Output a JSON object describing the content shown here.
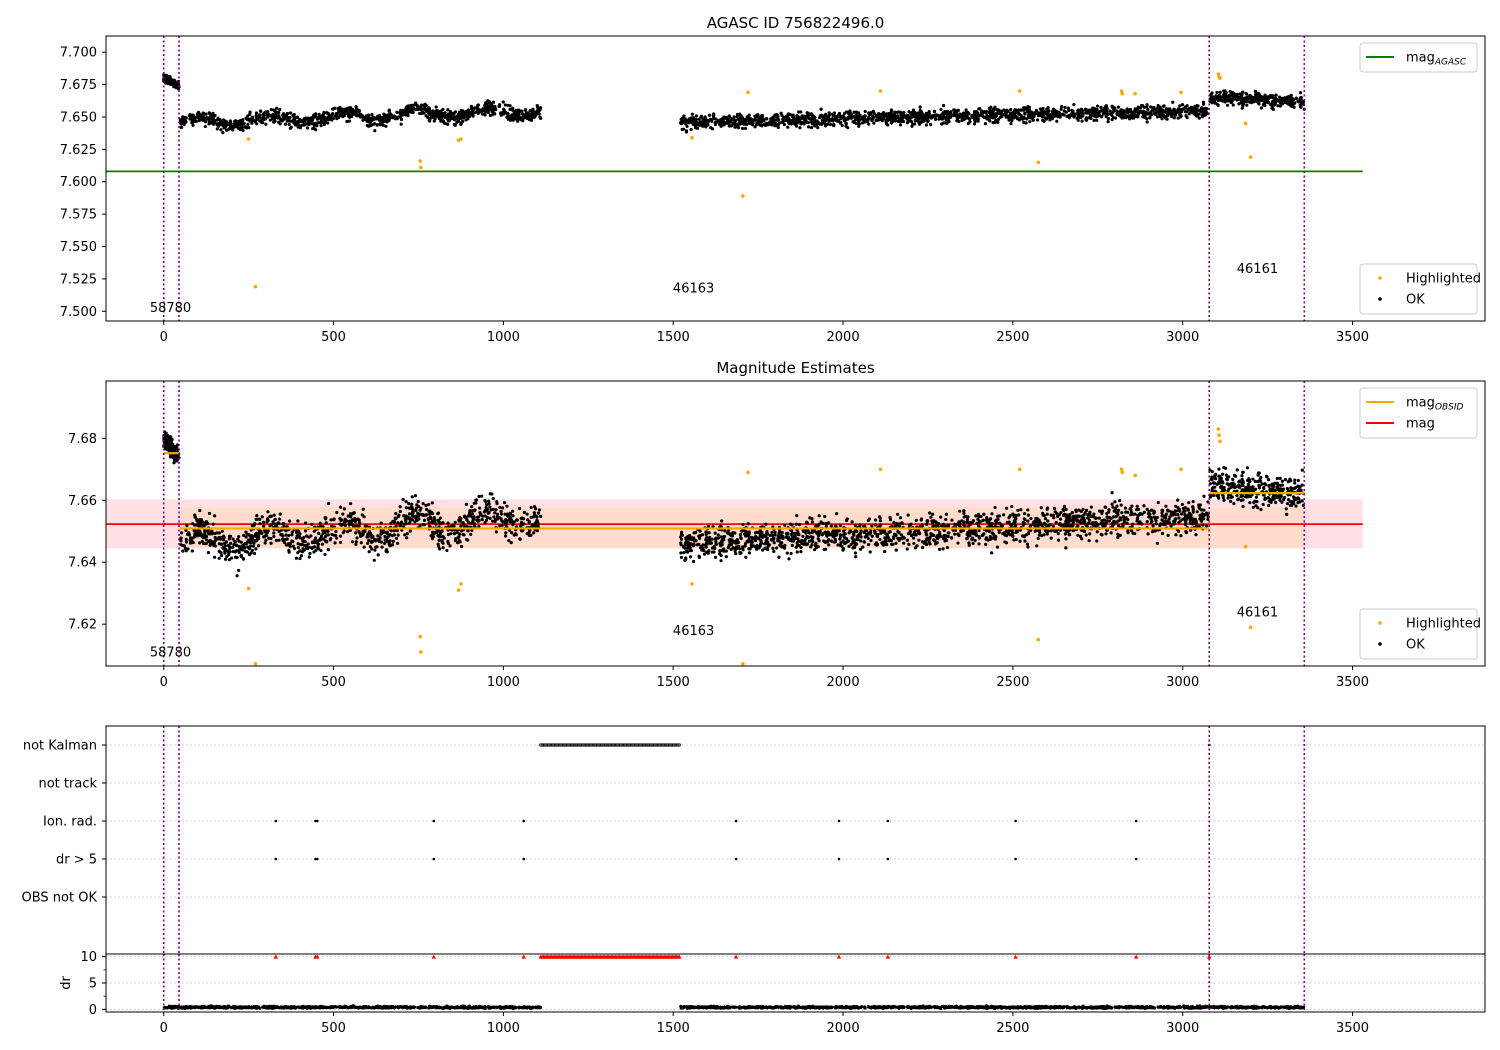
{
  "colors": {
    "ok": "#000000",
    "highlighted": "#ffa500",
    "agasc_line": "#008000",
    "mag_line": "#ff0000",
    "obsid_line": "#ffa500",
    "obs_boundary": "#800080",
    "band_outer": "#ffc8d0",
    "band_inner": "#ffd8b8",
    "flag_marker": "#ff0000"
  },
  "chart_data": [
    {
      "id": "top",
      "type": "scatter",
      "title": "AGASC ID 756822496.0",
      "xlabel": "",
      "ylabel": "",
      "xlim": [
        -170,
        3890
      ],
      "ylim": [
        7.4925,
        7.7125
      ],
      "xticks": [
        0,
        500,
        1000,
        1500,
        2000,
        2500,
        3000,
        3500
      ],
      "yticks": [
        7.5,
        7.525,
        7.55,
        7.575,
        7.6,
        7.625,
        7.65,
        7.675,
        7.7
      ],
      "ytick_labels": [
        "7.500",
        "7.525",
        "7.550",
        "7.575",
        "7.600",
        "7.625",
        "7.650",
        "7.675",
        "7.700"
      ],
      "grid": false,
      "legends": [
        {
          "placement": "top-right",
          "entries": [
            {
              "kind": "line",
              "color_key": "agasc_line",
              "label": "mag",
              "subscript": "AGASC"
            }
          ]
        },
        {
          "placement": "bottom-right",
          "entries": [
            {
              "kind": "dot",
              "color_key": "highlighted",
              "label": "Highlighted",
              "subscript": ""
            },
            {
              "kind": "dot",
              "color_key": "ok",
              "label": "OK",
              "subscript": ""
            }
          ]
        }
      ],
      "hlines": [
        {
          "y": 7.608,
          "x_range": [
            -170,
            3530
          ],
          "color_key": "agasc_line"
        }
      ],
      "segments": [],
      "bands": [],
      "observation_boundaries": [
        0,
        45,
        3078,
        3358
      ],
      "observation_labels": [
        {
          "text": "58780",
          "x": 20,
          "y": 7.4995
        },
        {
          "text": "46163",
          "x": 1560,
          "y": 7.5145
        },
        {
          "text": "46161",
          "x": 3220,
          "y": 7.5295
        }
      ],
      "ok_segments": [
        {
          "x": [
            0,
            45
          ],
          "start": 7.68,
          "end": 7.674,
          "noise": 0.0025,
          "count": 150
        },
        {
          "x": [
            48,
            1110
          ],
          "start": 7.646,
          "end": 7.655,
          "noise": 0.0045,
          "count": 1050,
          "wave": 0.0035
        },
        {
          "x": [
            1522,
            3075
          ],
          "start": 7.646,
          "end": 7.655,
          "noise": 0.0045,
          "count": 1550
        },
        {
          "x": [
            3080,
            3358
          ],
          "start": 7.665,
          "end": 7.662,
          "noise": 0.0045,
          "count": 330
        }
      ],
      "highlighted_points": [
        [
          250,
          7.633
        ],
        [
          270,
          7.519
        ],
        [
          755,
          7.616
        ],
        [
          757,
          7.611
        ],
        [
          868,
          7.632
        ],
        [
          875,
          7.633
        ],
        [
          1555,
          7.634
        ],
        [
          1705,
          7.589
        ],
        [
          1720,
          7.669
        ],
        [
          2110,
          7.67
        ],
        [
          2520,
          7.67
        ],
        [
          2575,
          7.615
        ],
        [
          2820,
          7.67
        ],
        [
          2822,
          7.668
        ],
        [
          2860,
          7.668
        ],
        [
          2995,
          7.669
        ],
        [
          3105,
          7.683
        ],
        [
          3107,
          7.681
        ],
        [
          3110,
          7.68
        ],
        [
          3185,
          7.645
        ],
        [
          3200,
          7.619
        ]
      ],
      "flag_rows": [],
      "dr_ticks": []
    },
    {
      "id": "middle",
      "type": "scatter",
      "title": "Magnitude Estimates",
      "xlabel": "",
      "ylabel": "",
      "xlim": [
        -170,
        3890
      ],
      "ylim": [
        7.6065,
        7.6985
      ],
      "xticks": [
        0,
        500,
        1000,
        1500,
        2000,
        2500,
        3000,
        3500
      ],
      "yticks": [
        7.62,
        7.64,
        7.66,
        7.68
      ],
      "ytick_labels": [
        "7.62",
        "7.64",
        "7.66",
        "7.68"
      ],
      "grid": false,
      "legends": [
        {
          "placement": "top-right",
          "entries": [
            {
              "kind": "line",
              "color_key": "obsid_line",
              "label": "mag",
              "subscript": "OBSID"
            },
            {
              "kind": "line",
              "color_key": "mag_line",
              "label": "mag",
              "subscript": ""
            }
          ]
        },
        {
          "placement": "bottom-right",
          "entries": [
            {
              "kind": "dot",
              "color_key": "highlighted",
              "label": "Highlighted",
              "subscript": ""
            },
            {
              "kind": "dot",
              "color_key": "ok",
              "label": "OK",
              "subscript": ""
            }
          ]
        }
      ],
      "hlines": [
        {
          "y": 7.6523,
          "x_range": [
            -170,
            3530
          ],
          "color_key": "mag_line"
        }
      ],
      "segments": [
        {
          "x": [
            0,
            45
          ],
          "y": 7.6752,
          "color_key": "obsid_line"
        },
        {
          "x": [
            48,
            3078
          ],
          "y": 7.6509,
          "color_key": "obsid_line"
        },
        {
          "x": [
            3080,
            3358
          ],
          "y": 7.6623,
          "color_key": "obsid_line"
        }
      ],
      "bands": [
        {
          "x_range": [
            -170,
            3530
          ],
          "y_range": [
            7.6445,
            7.6603
          ],
          "color_key": "band_outer"
        },
        {
          "x_range": [
            48,
            3358
          ],
          "y_range": [
            7.6445,
            7.6577
          ],
          "color_key": "band_inner"
        }
      ],
      "observation_boundaries": [
        0,
        45,
        3078,
        3358
      ],
      "observation_labels": [
        {
          "text": "58780",
          "x": 20,
          "y": 7.6095
        },
        {
          "text": "46163",
          "x": 1560,
          "y": 7.6165
        },
        {
          "text": "46161",
          "x": 3220,
          "y": 7.6225
        }
      ],
      "ok_segments": [
        {
          "x": [
            0,
            45
          ],
          "start": 7.68,
          "end": 7.674,
          "noise": 0.0025,
          "count": 150
        },
        {
          "x": [
            48,
            1110
          ],
          "start": 7.646,
          "end": 7.655,
          "noise": 0.0045,
          "count": 1050,
          "wave": 0.0035
        },
        {
          "x": [
            1522,
            3075
          ],
          "start": 7.646,
          "end": 7.655,
          "noise": 0.0045,
          "count": 1550
        },
        {
          "x": [
            3080,
            3358
          ],
          "start": 7.665,
          "end": 7.662,
          "noise": 0.0045,
          "count": 330
        }
      ],
      "highlighted_points": [
        [
          250,
          7.6315
        ],
        [
          270,
          7.6072
        ],
        [
          755,
          7.616
        ],
        [
          757,
          7.611
        ],
        [
          868,
          7.631
        ],
        [
          875,
          7.633
        ],
        [
          1555,
          7.633
        ],
        [
          1705,
          7.6072
        ],
        [
          1720,
          7.669
        ],
        [
          2110,
          7.67
        ],
        [
          2520,
          7.67
        ],
        [
          2575,
          7.615
        ],
        [
          2820,
          7.67
        ],
        [
          2822,
          7.669
        ],
        [
          2860,
          7.668
        ],
        [
          2995,
          7.67
        ],
        [
          3105,
          7.683
        ],
        [
          3107,
          7.681
        ],
        [
          3110,
          7.679
        ],
        [
          3185,
          7.645
        ],
        [
          3200,
          7.619
        ]
      ],
      "flag_rows": [],
      "dr_ticks": []
    },
    {
      "id": "flags",
      "type": "scatter",
      "title": "",
      "xlabel": "",
      "ylabel": "",
      "xlim": [
        -170,
        3890
      ],
      "ylim": [
        -0.5,
        5.5
      ],
      "xticks": [],
      "yticks": [
        1,
        2,
        3,
        4,
        5
      ],
      "ytick_labels": [
        "OBS not OK",
        "dr > 5",
        "Ion. rad.",
        "not track",
        "not Kalman"
      ],
      "grid": true,
      "legends": [],
      "hlines": [],
      "segments": [],
      "bands": [],
      "observation_boundaries": [
        0,
        45,
        3078,
        3358
      ],
      "observation_labels": [],
      "ok_segments": [],
      "highlighted_points": [],
      "flag_rows": [
        {
          "label": "not Kalman",
          "y": 5,
          "spans": [
            [
              1110,
              1520
            ]
          ],
          "points": [
            3078
          ]
        },
        {
          "label": "not track",
          "y": 4,
          "spans": [],
          "points": []
        },
        {
          "label": "Ion. rad.",
          "y": 3,
          "spans": [],
          "points": [
            330,
            447,
            452,
            795,
            1060,
            1685,
            1988,
            2132,
            2508,
            2863
          ]
        },
        {
          "label": "dr > 5",
          "y": 2,
          "spans": [],
          "points": [
            330,
            447,
            452,
            795,
            1060,
            1685,
            1988,
            2132,
            2508,
            2863
          ]
        },
        {
          "label": "OBS not OK",
          "y": 1,
          "spans": [],
          "points": []
        }
      ],
      "dr_ticks": []
    },
    {
      "id": "dr",
      "type": "scatter",
      "title": "",
      "xlabel": "",
      "ylabel": "dr",
      "xlim": [
        -170,
        3890
      ],
      "ylim": [
        -0.5,
        10.5
      ],
      "xticks": [
        0,
        500,
        1000,
        1500,
        2000,
        2500,
        3000,
        3500
      ],
      "yticks": [
        0,
        5,
        10
      ],
      "ytick_labels": [
        "0",
        "5",
        "10"
      ],
      "grid": true,
      "legends": [],
      "hlines": [],
      "segments": [],
      "bands": [],
      "observation_boundaries": [
        0,
        45,
        3078,
        3358
      ],
      "observation_labels": [],
      "ok_segments": [
        {
          "x": [
            0,
            1110
          ],
          "start": 0.4,
          "end": 0.4,
          "noise": 0.15,
          "count": 700
        },
        {
          "x": [
            1522,
            3358
          ],
          "start": 0.4,
          "end": 0.4,
          "noise": 0.15,
          "count": 1100
        }
      ],
      "highlighted_points": [],
      "flag_rows": [],
      "dr_ticks": [
        {
          "spans": [
            [
              1110,
              1520
            ]
          ],
          "points": [
            330,
            447,
            452,
            795,
            1060,
            1685,
            1988,
            2132,
            2508,
            2863,
            3078
          ],
          "value": 10
        }
      ]
    }
  ]
}
